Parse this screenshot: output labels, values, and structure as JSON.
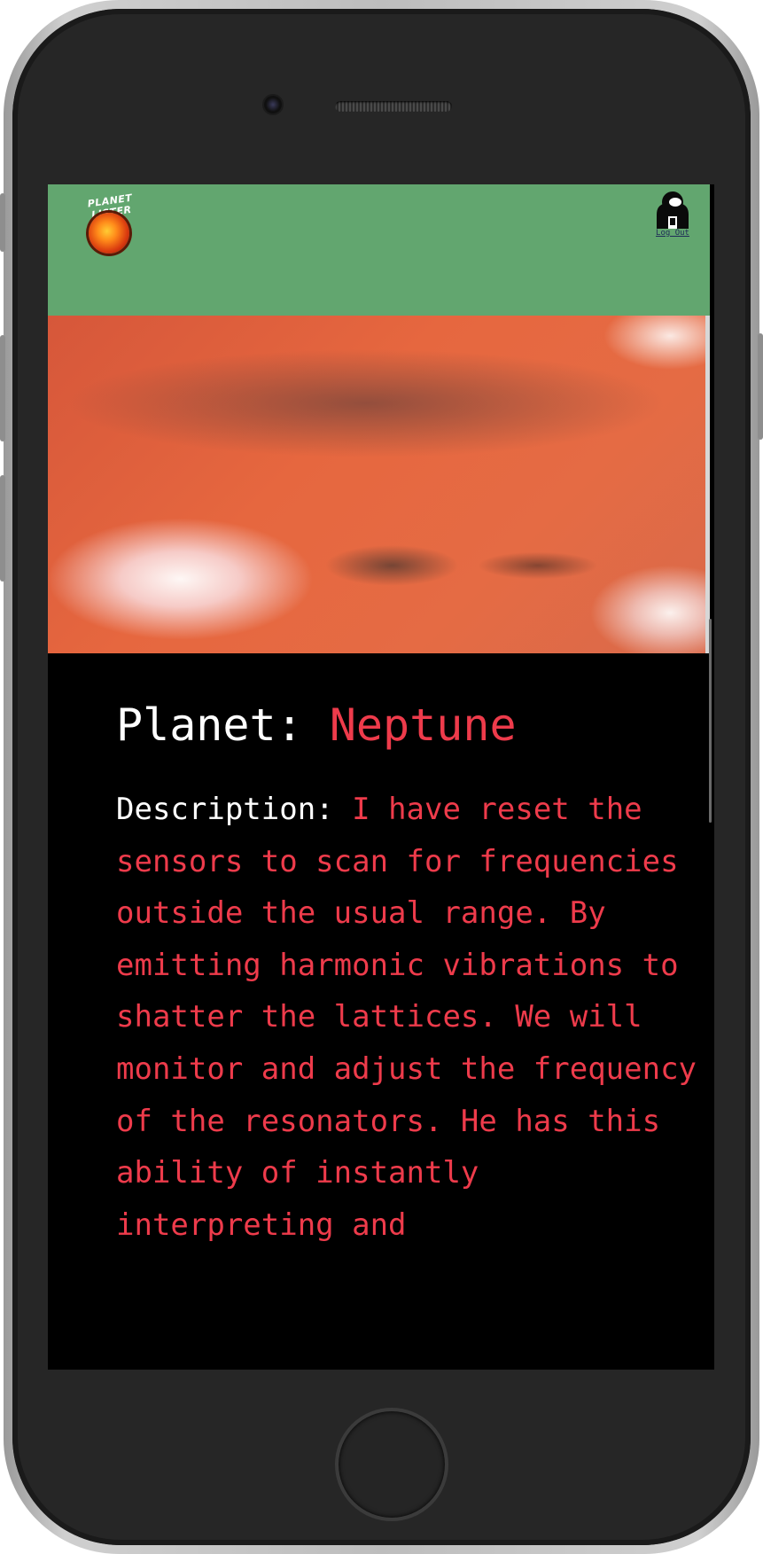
{
  "app": {
    "logo_text": "PLANET LISTER",
    "logout_label": "Log Out"
  },
  "planet": {
    "label": "Planet:",
    "name": "Neptune"
  },
  "description": {
    "label": "Description:",
    "text": "I have reset the sensors to scan for frequencies outside the usual range. By emitting harmonic vibrations to shatter the lattices. We will monitor and adjust the frequency of the resonators. He has this ability of instantly interpreting and"
  },
  "colors": {
    "header": "#62a66f",
    "accent": "#ee3b4b",
    "background": "#000000",
    "text": "#ffffff"
  },
  "icons": {
    "logo": "planet-lister-sun-logo",
    "user": "astronaut-icon"
  }
}
